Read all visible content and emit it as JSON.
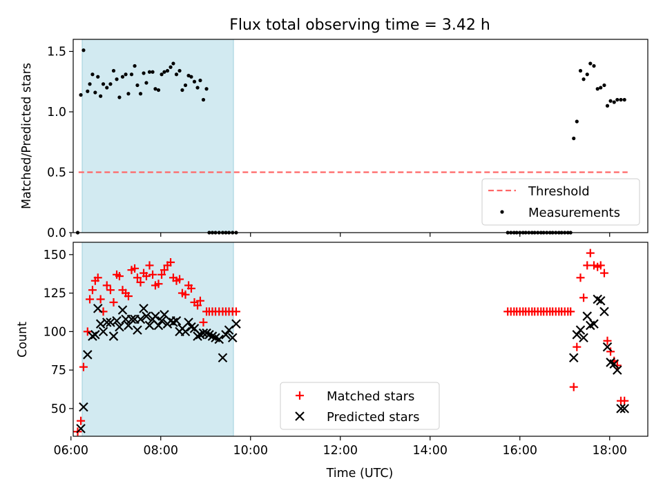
{
  "chart_data": [
    {
      "type": "scatter",
      "title": "Flux total observing time = 3.42 h",
      "xlabel": "",
      "ylabel": "Matched/Predicted stars",
      "xlim": [
        6.05,
        18.85
      ],
      "ylim": [
        0,
        1.6
      ],
      "yticks": [
        0,
        0.5,
        1.0,
        1.5
      ],
      "ytick_labels": [
        "0.0",
        "0.5",
        "1.0",
        "1.5"
      ],
      "shaded_interval": {
        "from": 6.25,
        "to": 9.62,
        "color": "#add8e6"
      },
      "grid": false,
      "legend": "lower right",
      "series": [
        {
          "name": "Threshold",
          "kind": "line",
          "style": "dashed",
          "color": "#ff6666",
          "x": [
            6.17,
            18.4
          ],
          "y": [
            0.5,
            0.5
          ]
        },
        {
          "name": "Measurements",
          "kind": "points",
          "marker": "dot",
          "color": "#000000",
          "x": [
            6.15,
            6.22,
            6.28,
            6.37,
            6.42,
            6.48,
            6.54,
            6.6,
            6.66,
            6.72,
            6.8,
            6.88,
            6.95,
            7.02,
            7.08,
            7.15,
            7.22,
            7.28,
            7.35,
            7.42,
            7.48,
            7.55,
            7.62,
            7.68,
            7.75,
            7.82,
            7.88,
            7.95,
            8.02,
            8.08,
            8.15,
            8.22,
            8.28,
            8.35,
            8.42,
            8.48,
            8.55,
            8.62,
            8.68,
            8.75,
            8.82,
            8.88,
            8.95,
            9.02,
            9.08,
            9.15,
            9.22,
            9.3,
            9.38,
            9.45,
            9.52,
            9.6,
            9.68,
            15.73,
            15.8,
            15.87,
            15.93,
            16.0,
            16.07,
            16.13,
            16.2,
            16.27,
            16.33,
            16.4,
            16.47,
            16.53,
            16.6,
            16.67,
            16.73,
            16.8,
            16.87,
            16.93,
            17.0,
            17.07,
            17.13,
            17.2,
            17.27,
            17.35,
            17.42,
            17.5,
            17.57,
            17.65,
            17.73,
            17.8,
            17.88,
            17.95,
            18.02,
            18.1,
            18.17,
            18.25,
            18.33
          ],
          "y": [
            0.0,
            1.14,
            1.51,
            1.17,
            1.23,
            1.31,
            1.16,
            1.29,
            1.13,
            1.23,
            1.2,
            1.23,
            1.34,
            1.27,
            1.12,
            1.29,
            1.31,
            1.15,
            1.31,
            1.38,
            1.22,
            1.15,
            1.32,
            1.24,
            1.33,
            1.33,
            1.19,
            1.18,
            1.31,
            1.33,
            1.34,
            1.37,
            1.4,
            1.31,
            1.34,
            1.18,
            1.22,
            1.3,
            1.29,
            1.25,
            1.2,
            1.26,
            1.1,
            1.19,
            0.0,
            0.0,
            0.0,
            0.0,
            0.0,
            0.0,
            0.0,
            0.0,
            0.0,
            0.0,
            0.0,
            0.0,
            0.0,
            0.0,
            0.0,
            0.0,
            0.0,
            0.0,
            0.0,
            0.0,
            0.0,
            0.0,
            0.0,
            0.0,
            0.0,
            0.0,
            0.0,
            0.0,
            0.0,
            0.0,
            0.0,
            0.78,
            0.92,
            1.34,
            1.27,
            1.31,
            1.4,
            1.38,
            1.19,
            1.2,
            1.22,
            1.05,
            1.09,
            1.08,
            1.1,
            1.1,
            1.1
          ]
        }
      ]
    },
    {
      "type": "scatter",
      "title": "",
      "xlabel": "Time (UTC)",
      "ylabel": "Count",
      "xlim": [
        6.05,
        18.85
      ],
      "ylim": [
        32,
        158
      ],
      "yticks": [
        50,
        75,
        100,
        125,
        150
      ],
      "ytick_labels": [
        "50",
        "75",
        "100",
        "125",
        "150"
      ],
      "xticks": [
        6,
        8,
        10,
        12,
        14,
        16,
        18
      ],
      "xtick_labels": [
        "06:00",
        "08:00",
        "10:00",
        "12:00",
        "14:00",
        "16:00",
        "18:00"
      ],
      "shaded_interval": {
        "from": 6.25,
        "to": 9.62,
        "color": "#add8e6"
      },
      "grid": false,
      "legend": "lower center",
      "series": [
        {
          "name": "Matched stars",
          "marker": "plus",
          "color": "#ff0000",
          "x": [
            6.15,
            6.22,
            6.28,
            6.37,
            6.42,
            6.48,
            6.54,
            6.6,
            6.66,
            6.72,
            6.8,
            6.88,
            6.95,
            7.02,
            7.08,
            7.15,
            7.22,
            7.28,
            7.35,
            7.42,
            7.48,
            7.55,
            7.62,
            7.68,
            7.75,
            7.82,
            7.88,
            7.95,
            8.02,
            8.08,
            8.15,
            8.22,
            8.28,
            8.35,
            8.42,
            8.48,
            8.55,
            8.62,
            8.68,
            8.75,
            8.82,
            8.88,
            8.95,
            9.02,
            9.08,
            9.15,
            9.22,
            9.3,
            9.38,
            9.45,
            9.52,
            9.6,
            9.68,
            15.73,
            15.8,
            15.87,
            15.93,
            16.0,
            16.07,
            16.13,
            16.2,
            16.27,
            16.33,
            16.4,
            16.47,
            16.53,
            16.6,
            16.67,
            16.73,
            16.8,
            16.87,
            16.93,
            17.0,
            17.07,
            17.13,
            17.2,
            17.27,
            17.35,
            17.42,
            17.5,
            17.57,
            17.65,
            17.73,
            17.8,
            17.88,
            17.95,
            18.02,
            18.1,
            18.17,
            18.25,
            18.33
          ],
          "y": [
            35,
            42,
            77,
            100,
            121,
            127,
            133,
            135,
            121,
            113,
            130,
            127,
            119,
            137,
            136,
            127,
            125,
            123,
            140,
            141,
            135,
            132,
            138,
            136,
            143,
            137,
            130,
            131,
            137,
            140,
            143,
            145,
            135,
            133,
            134,
            125,
            124,
            130,
            128,
            119,
            117,
            120,
            106,
            113,
            113,
            113,
            113,
            113,
            113,
            113,
            113,
            113,
            113,
            113,
            113,
            113,
            113,
            113,
            113,
            113,
            113,
            113,
            113,
            113,
            113,
            113,
            113,
            113,
            113,
            113,
            113,
            113,
            113,
            113,
            113,
            64,
            90,
            135,
            122,
            143,
            151,
            143,
            142,
            143,
            138,
            94,
            87,
            81,
            78,
            55,
            55
          ],
          "y_note": ""
        },
        {
          "name": "Predicted stars",
          "marker": "x",
          "color": "#000000",
          "x": [
            6.22,
            6.28,
            6.37,
            6.48,
            6.54,
            6.6,
            6.66,
            6.72,
            6.8,
            6.88,
            6.95,
            7.02,
            7.08,
            7.15,
            7.22,
            7.28,
            7.35,
            7.42,
            7.48,
            7.55,
            7.62,
            7.68,
            7.75,
            7.82,
            7.88,
            7.95,
            8.02,
            8.08,
            8.15,
            8.22,
            8.28,
            8.35,
            8.42,
            8.48,
            8.55,
            8.62,
            8.68,
            8.75,
            8.82,
            8.88,
            8.95,
            9.02,
            9.08,
            9.15,
            9.22,
            9.3,
            9.38,
            9.45,
            9.52,
            9.6,
            9.68,
            17.2,
            17.27,
            17.35,
            17.42,
            17.5,
            17.57,
            17.65,
            17.73,
            17.8,
            17.88,
            17.95,
            18.02,
            18.1,
            18.17,
            18.25,
            18.33
          ],
          "y": [
            37,
            51,
            85,
            97,
            98,
            115,
            105,
            100,
            106,
            106,
            97,
            107,
            103,
            114,
            108,
            104,
            108,
            108,
            101,
            108,
            115,
            110,
            104,
            108,
            110,
            104,
            107,
            111,
            105,
            107,
            106,
            107,
            100,
            102,
            100,
            106,
            103,
            102,
            97,
            98,
            99,
            99,
            98,
            97,
            96,
            95,
            83,
            98,
            101,
            96,
            105,
            83,
            98,
            101,
            96,
            110,
            104,
            105,
            121,
            120,
            113,
            90,
            80,
            79,
            75,
            50,
            50
          ]
        }
      ]
    }
  ]
}
